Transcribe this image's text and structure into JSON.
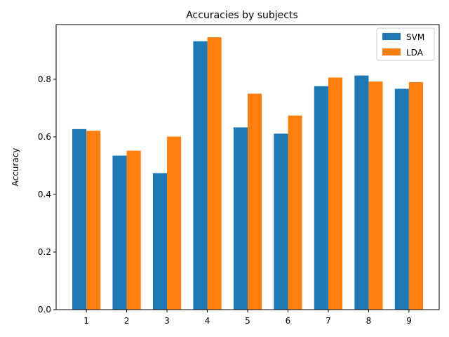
{
  "chart_data": {
    "type": "bar",
    "title": "Accuracies by subjects",
    "xlabel": "",
    "ylabel": "Accuracy",
    "categories": [
      "1",
      "2",
      "3",
      "4",
      "5",
      "6",
      "7",
      "8",
      "9"
    ],
    "series": [
      {
        "name": "SVM",
        "color": "#1f77b4",
        "values": [
          0.627,
          0.535,
          0.474,
          0.932,
          0.633,
          0.611,
          0.776,
          0.813,
          0.767
        ]
      },
      {
        "name": "LDA",
        "color": "#ff7f0e",
        "values": [
          0.621,
          0.552,
          0.601,
          0.946,
          0.75,
          0.674,
          0.806,
          0.792,
          0.79
        ]
      }
    ],
    "ylim": [
      0,
      0.99
    ],
    "yticks": [
      0.0,
      0.2,
      0.4,
      0.6,
      0.8
    ],
    "ytick_labels": [
      "0.0",
      "0.2",
      "0.4",
      "0.6",
      "0.8"
    ],
    "grid": false,
    "legend_position": "top-right"
  }
}
